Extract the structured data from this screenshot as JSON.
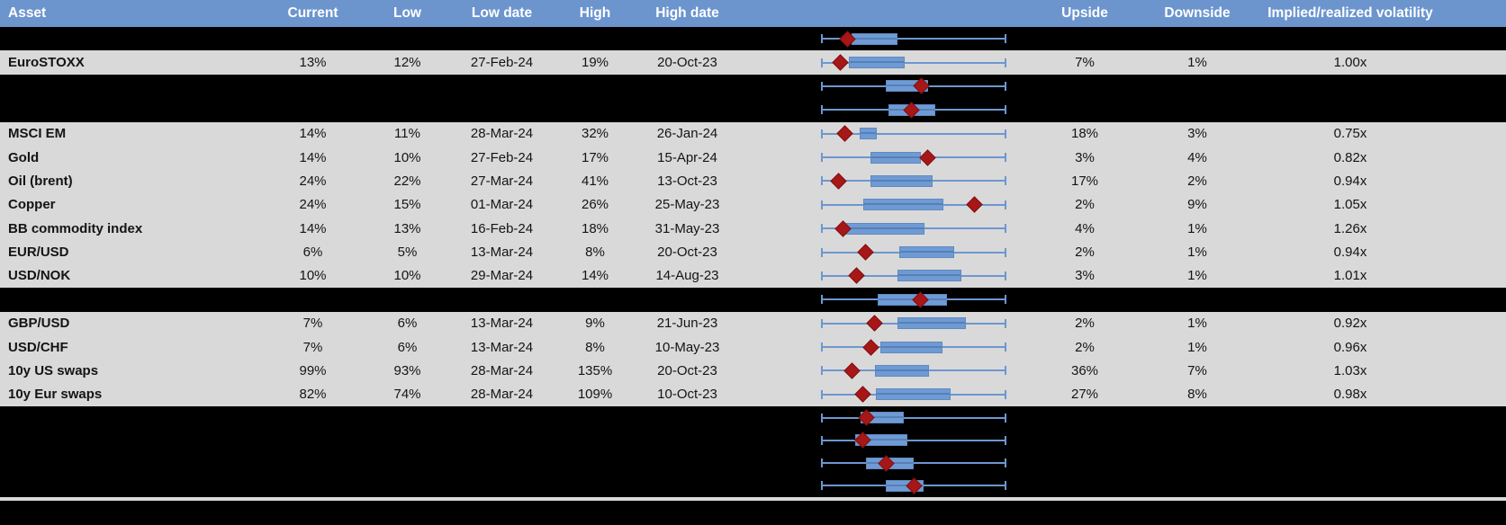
{
  "columns": [
    {
      "key": "asset",
      "label": "Asset"
    },
    {
      "key": "current",
      "label": "Current"
    },
    {
      "key": "low",
      "label": "Low"
    },
    {
      "key": "low_date",
      "label": "Low date"
    },
    {
      "key": "high",
      "label": "High"
    },
    {
      "key": "high_date",
      "label": "High date"
    },
    {
      "key": "chart",
      "label": ""
    },
    {
      "key": "upside",
      "label": "Upside"
    },
    {
      "key": "downside",
      "label": "Downside"
    },
    {
      "key": "implied",
      "label": "Implied/realized volatility"
    }
  ],
  "colors": {
    "header_bg": "#6c95ce",
    "header_text": "#ffffff",
    "row_bg": "#d9d9d9",
    "hidden_row_bg": "#000000",
    "whisker_blue": "#6c97d0",
    "box_blue": "#6f9bd4",
    "marker_red": "#a71717",
    "text": "#141414"
  },
  "chart_data": {
    "type": "table",
    "note_chart": "Each row has a horizontal box-and-whisker plot: whisker spans the asset's low-high volatility range (normalized 0-1), blue box = middle range, dark-red diamond = current level. box_low/box_high/marker are fractions of the whisker span.",
    "rows": [
      {
        "row_type": "hidden",
        "marker": 0.14,
        "box_low": 0.16,
        "box_high": 0.41
      },
      {
        "row_type": "data",
        "asset": "EuroSTOXX",
        "current": "13%",
        "low": "12%",
        "low_date": "27-Feb-24",
        "high": "19%",
        "high_date": "20-Oct-23",
        "upside": "7%",
        "downside": "1%",
        "implied": "1.00x",
        "marker": 0.1,
        "box_low": 0.145,
        "box_high": 0.45
      },
      {
        "row_type": "hidden",
        "marker": 0.54,
        "box_low": 0.35,
        "box_high": 0.58
      },
      {
        "row_type": "hidden",
        "marker": 0.49,
        "box_low": 0.365,
        "box_high": 0.62
      },
      {
        "row_type": "data",
        "asset": "MSCI EM",
        "current": "14%",
        "low": "11%",
        "low_date": "28-Mar-24",
        "high": "32%",
        "high_date": "26-Jan-24",
        "upside": "18%",
        "downside": "3%",
        "implied": "0.75x",
        "marker": 0.125,
        "box_low": 0.205,
        "box_high": 0.3
      },
      {
        "row_type": "data",
        "asset": "Gold",
        "current": "14%",
        "low": "10%",
        "low_date": "27-Feb-24",
        "high": "17%",
        "high_date": "15-Apr-24",
        "upside": "3%",
        "downside": "4%",
        "implied": "0.82x",
        "marker": 0.575,
        "box_low": 0.265,
        "box_high": 0.54
      },
      {
        "row_type": "data",
        "asset": "Oil (brent)",
        "current": "24%",
        "low": "22%",
        "low_date": "27-Mar-24",
        "high": "41%",
        "high_date": "13-Oct-23",
        "upside": "17%",
        "downside": "2%",
        "implied": "0.94x",
        "marker": 0.09,
        "box_low": 0.265,
        "box_high": 0.605
      },
      {
        "row_type": "data",
        "asset": "Copper",
        "current": "24%",
        "low": "15%",
        "low_date": "01-Mar-24",
        "high": "26%",
        "high_date": "25-May-23",
        "upside": "2%",
        "downside": "9%",
        "implied": "1.05x",
        "marker": 0.83,
        "box_low": 0.225,
        "box_high": 0.66
      },
      {
        "row_type": "data",
        "asset": "BB commodity index",
        "current": "14%",
        "low": "13%",
        "low_date": "16-Feb-24",
        "high": "18%",
        "high_date": "31-May-23",
        "upside": "4%",
        "downside": "1%",
        "implied": "1.26x",
        "marker": 0.115,
        "box_low": 0.12,
        "box_high": 0.56
      },
      {
        "row_type": "data",
        "asset": "EUR/USD",
        "current": "6%",
        "low": "5%",
        "low_date": "13-Mar-24",
        "high": "8%",
        "high_date": "20-Oct-23",
        "upside": "2%",
        "downside": "1%",
        "implied": "0.94x",
        "marker": 0.24,
        "box_low": 0.42,
        "box_high": 0.72
      },
      {
        "row_type": "data",
        "asset": "USD/NOK",
        "current": "10%",
        "low": "10%",
        "low_date": "29-Mar-24",
        "high": "14%",
        "high_date": "14-Aug-23",
        "upside": "3%",
        "downside": "1%",
        "implied": "1.01x",
        "marker": 0.19,
        "box_low": 0.41,
        "box_high": 0.76
      },
      {
        "row_type": "hidden",
        "marker": 0.535,
        "box_low": 0.305,
        "box_high": 0.68
      },
      {
        "row_type": "data",
        "asset": "GBP/USD",
        "current": "7%",
        "low": "6%",
        "low_date": "13-Mar-24",
        "high": "9%",
        "high_date": "21-Jun-23",
        "upside": "2%",
        "downside": "1%",
        "implied": "0.92x",
        "marker": 0.285,
        "box_low": 0.41,
        "box_high": 0.785
      },
      {
        "row_type": "data",
        "asset": "USD/CHF",
        "current": "7%",
        "low": "6%",
        "low_date": "13-Mar-24",
        "high": "8%",
        "high_date": "10-May-23",
        "upside": "2%",
        "downside": "1%",
        "implied": "0.96x",
        "marker": 0.265,
        "box_low": 0.32,
        "box_high": 0.655
      },
      {
        "row_type": "data",
        "asset": "10y US swaps",
        "current": "99%",
        "low": "93%",
        "low_date": "28-Mar-24",
        "high": "135%",
        "high_date": "20-Oct-23",
        "upside": "36%",
        "downside": "7%",
        "implied": "1.03x",
        "marker": 0.165,
        "box_low": 0.29,
        "box_high": 0.585
      },
      {
        "row_type": "data",
        "asset": "10y Eur swaps",
        "current": "82%",
        "low": "74%",
        "low_date": "28-Mar-24",
        "high": "109%",
        "high_date": "10-Oct-23",
        "upside": "27%",
        "downside": "8%",
        "implied": "0.98x",
        "marker": 0.225,
        "box_low": 0.295,
        "box_high": 0.7
      },
      {
        "row_type": "bottom",
        "marker": 0.245,
        "box_low": 0.21,
        "box_high": 0.445
      },
      {
        "row_type": "bottom",
        "marker": 0.225,
        "box_low": 0.18,
        "box_high": 0.465
      },
      {
        "row_type": "bottom",
        "marker": 0.35,
        "box_low": 0.24,
        "box_high": 0.5
      },
      {
        "row_type": "bottom",
        "marker": 0.5,
        "box_low": 0.35,
        "box_high": 0.555
      }
    ]
  }
}
